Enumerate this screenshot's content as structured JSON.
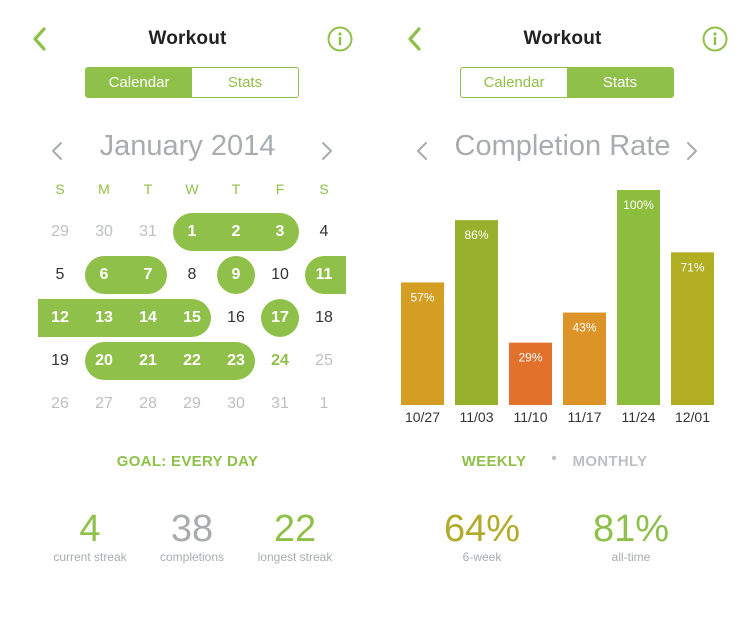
{
  "colors": {
    "accent": "#8fc04a",
    "muted": "#a8acaf",
    "olive": "#b2aa2a",
    "bar_colors": [
      "#d39e22",
      "#98b12c",
      "#e2712c",
      "#dc9428",
      "#8cbd3c",
      "#b1ae22"
    ]
  },
  "left": {
    "title": "Workout",
    "tabs": [
      "Calendar",
      "Stats"
    ],
    "active_tab": "Calendar",
    "month": "January 2014",
    "weekdays": [
      "S",
      "M",
      "T",
      "W",
      "T",
      "F",
      "S"
    ],
    "weeks": [
      [
        {
          "d": "29",
          "s": "other"
        },
        {
          "d": "30",
          "s": "other"
        },
        {
          "d": "31",
          "s": "other"
        },
        {
          "d": "1",
          "s": "done"
        },
        {
          "d": "2",
          "s": "done"
        },
        {
          "d": "3",
          "s": "done"
        },
        {
          "d": "4",
          "s": "normal"
        }
      ],
      [
        {
          "d": "5",
          "s": "normal"
        },
        {
          "d": "6",
          "s": "done"
        },
        {
          "d": "7",
          "s": "done"
        },
        {
          "d": "8",
          "s": "normal"
        },
        {
          "d": "9",
          "s": "done"
        },
        {
          "d": "10",
          "s": "normal"
        },
        {
          "d": "11",
          "s": "done"
        }
      ],
      [
        {
          "d": "12",
          "s": "done"
        },
        {
          "d": "13",
          "s": "done"
        },
        {
          "d": "14",
          "s": "done"
        },
        {
          "d": "15",
          "s": "done"
        },
        {
          "d": "16",
          "s": "normal"
        },
        {
          "d": "17",
          "s": "done"
        },
        {
          "d": "18",
          "s": "normal"
        }
      ],
      [
        {
          "d": "19",
          "s": "normal"
        },
        {
          "d": "20",
          "s": "done"
        },
        {
          "d": "21",
          "s": "done"
        },
        {
          "d": "22",
          "s": "done"
        },
        {
          "d": "23",
          "s": "done"
        },
        {
          "d": "24",
          "s": "today"
        },
        {
          "d": "25",
          "s": "other"
        }
      ],
      [
        {
          "d": "26",
          "s": "other"
        },
        {
          "d": "27",
          "s": "other"
        },
        {
          "d": "28",
          "s": "other"
        },
        {
          "d": "29",
          "s": "other"
        },
        {
          "d": "30",
          "s": "other"
        },
        {
          "d": "31",
          "s": "other"
        },
        {
          "d": "1",
          "s": "other"
        }
      ]
    ],
    "goal": "GOAL: EVERY DAY",
    "stats": [
      {
        "value": "4",
        "caption": "current streak",
        "color": "#8fc04a"
      },
      {
        "value": "38",
        "caption": "completions",
        "color": "#a8acaf"
      },
      {
        "value": "22",
        "caption": "longest streak",
        "color": "#8fc04a"
      }
    ]
  },
  "right": {
    "title": "Workout",
    "tabs": [
      "Calendar",
      "Stats"
    ],
    "active_tab": "Stats",
    "chart_title": "Completion Rate",
    "toggle_weekly": "WEEKLY",
    "toggle_dot": "•",
    "toggle_monthly": "MONTHLY",
    "stats": [
      {
        "value": "64%",
        "caption": "6-week",
        "color": "#b2aa2a"
      },
      {
        "value": "81%",
        "caption": "all-time",
        "color": "#8fc04a"
      }
    ]
  },
  "chart_data": {
    "type": "bar",
    "title": "Completion Rate",
    "categories": [
      "10/27",
      "11/03",
      "11/10",
      "11/17",
      "11/24",
      "12/01"
    ],
    "values": [
      57,
      86,
      29,
      43,
      100,
      71
    ],
    "value_labels": [
      "57%",
      "86%",
      "29%",
      "43%",
      "100%",
      "71%"
    ],
    "ylim": [
      0,
      100
    ],
    "grid": false,
    "legend": "none"
  }
}
